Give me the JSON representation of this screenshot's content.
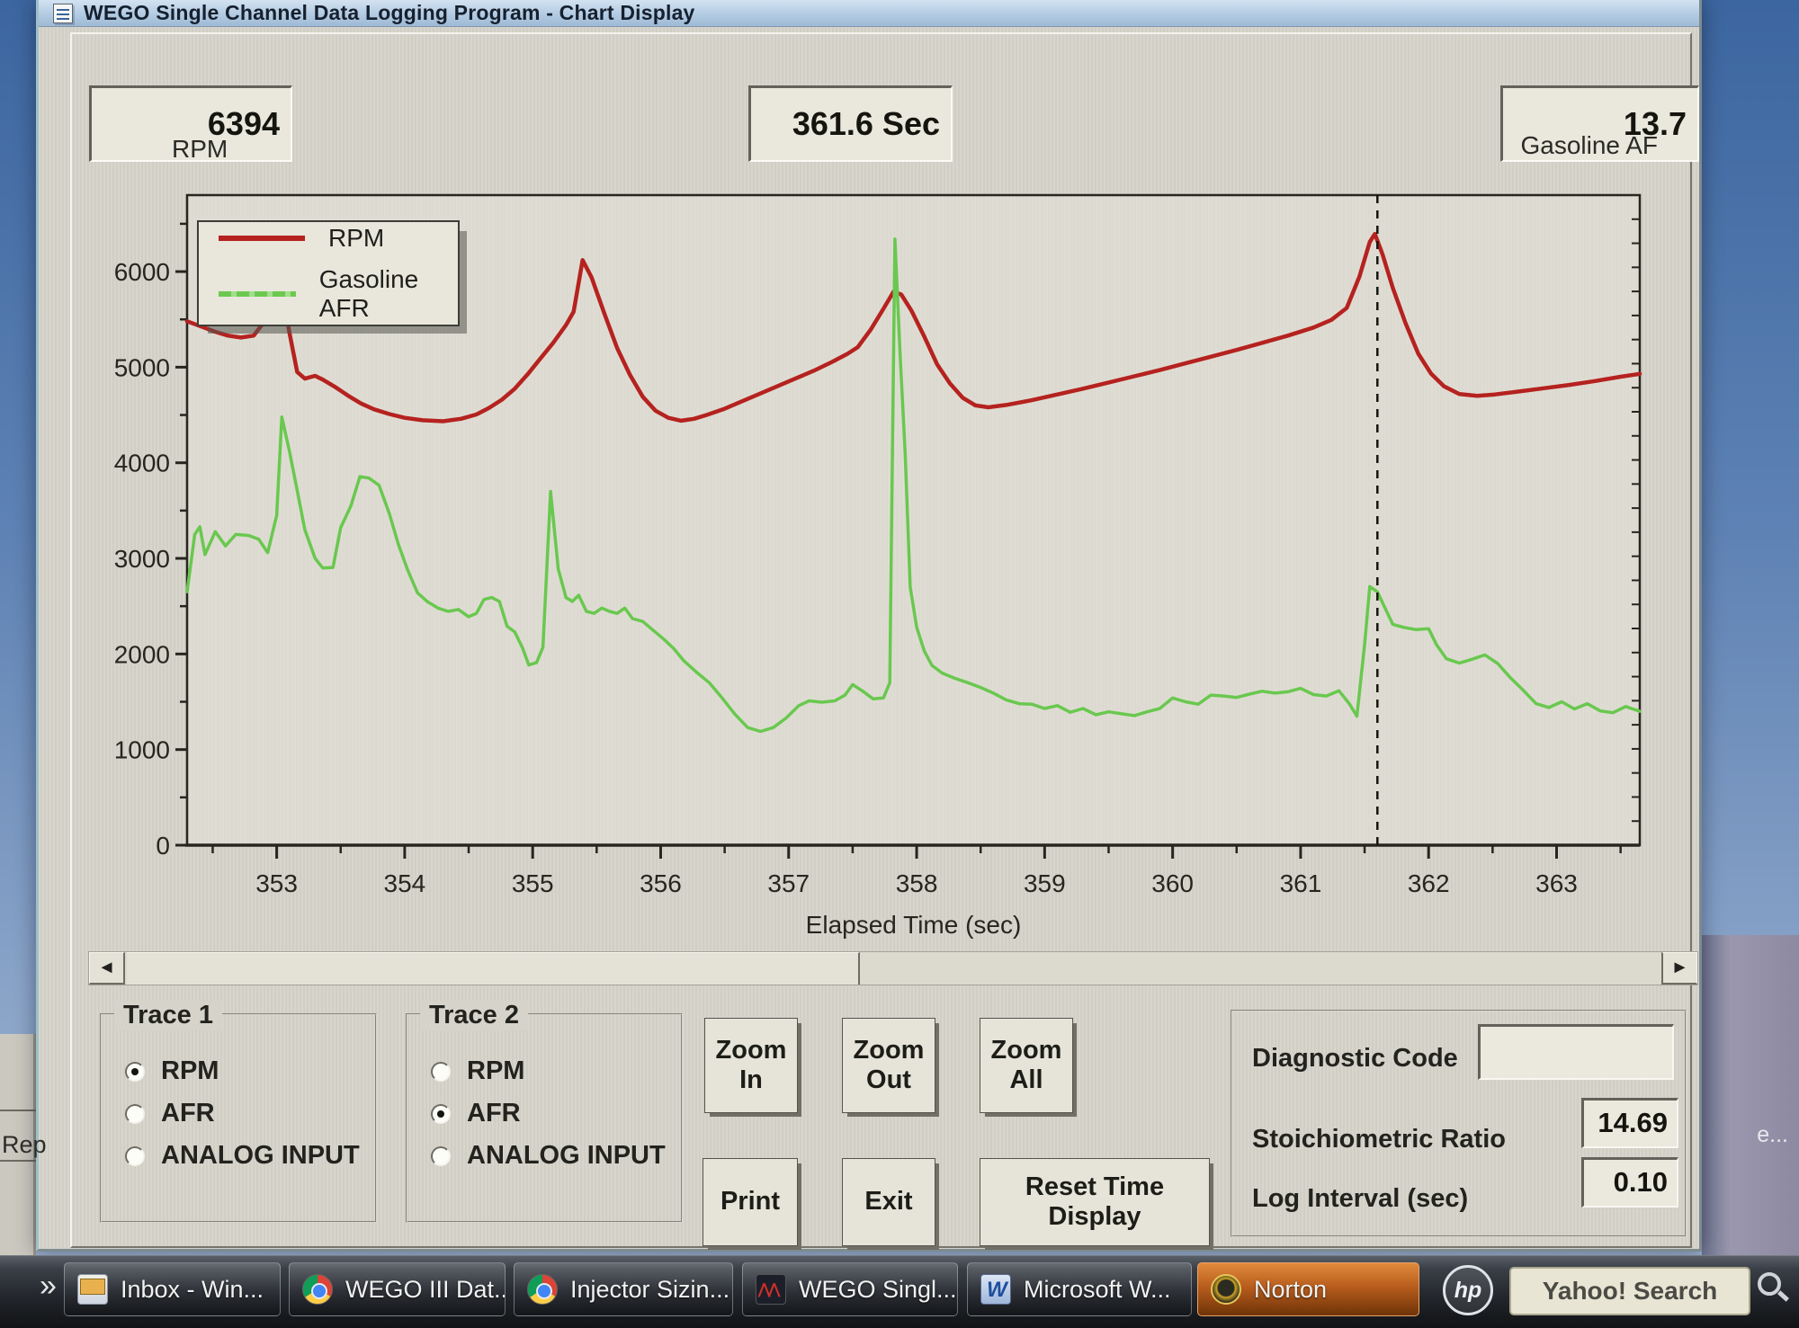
{
  "window": {
    "title": "WEGO Single Channel Data Logging Program - Chart Display"
  },
  "readouts": {
    "rpm_value": "6394",
    "time_value": "361.6 Sec",
    "afr_value": "13.7"
  },
  "background": {
    "rep_label": "Rep",
    "edge_label": "e...",
    "overflow_chevron": "»"
  },
  "scroll": {
    "left_arrow": "◄",
    "right_arrow": "►"
  },
  "trace1": {
    "label": "Trace 1",
    "options": [
      "RPM",
      "AFR",
      "ANALOG INPUT"
    ],
    "selected": "RPM"
  },
  "trace2": {
    "label": "Trace 2",
    "options": [
      "RPM",
      "AFR",
      "ANALOG INPUT"
    ],
    "selected": "AFR"
  },
  "buttons": {
    "zoom_in": "Zoom\nIn",
    "zoom_out": "Zoom\nOut",
    "zoom_all": "Zoom\nAll",
    "print": "Print",
    "exit": "Exit",
    "reset": "Reset Time\nDisplay"
  },
  "diagnostics": {
    "diagnostic_code_label": "Diagnostic Code",
    "diagnostic_code_value": "",
    "stoich_label": "Stoichiometric Ratio",
    "stoich_value": "14.69",
    "log_interval_label": "Log Interval (sec)",
    "log_interval_value": "0.10"
  },
  "taskbar": {
    "items": [
      {
        "icon": "mail",
        "label": "Inbox - Win..."
      },
      {
        "icon": "chrome",
        "label": "WEGO III Dat..."
      },
      {
        "icon": "chrome",
        "label": "Injector Sizin..."
      },
      {
        "icon": "wego",
        "label": "WEGO Singl..."
      },
      {
        "icon": "word",
        "label": "Microsoft W..."
      },
      {
        "icon": "norton",
        "label": "Norton",
        "highlight": true
      }
    ],
    "hp_label": "hp",
    "search_label": "Yahoo! Search"
  },
  "chart_data": {
    "type": "line",
    "title": "",
    "xlabel": "Elapsed Time (sec)",
    "ylabel": "RPM",
    "right_label": "Gasoline AF",
    "legend": [
      "RPM",
      "Gasoline AFR"
    ],
    "legend_position": "top-left",
    "grid": false,
    "xlim": [
      352.3,
      363.65
    ],
    "ylim": [
      0,
      6800
    ],
    "xticks": [
      353,
      354,
      355,
      356,
      357,
      358,
      359,
      360,
      361,
      362,
      363
    ],
    "yticks": [
      0,
      1000,
      2000,
      3000,
      4000,
      5000,
      6000
    ],
    "cursor_time": 361.6,
    "cursor_rpm": 6394,
    "cursor_afr": 13.7,
    "colors": {
      "rpm": "#b5221f",
      "afr": "#69c84f"
    },
    "series": [
      {
        "name": "RPM",
        "color": "#b5221f",
        "points": [
          [
            352.3,
            5480
          ],
          [
            352.42,
            5420
          ],
          [
            352.52,
            5370
          ],
          [
            352.62,
            5330
          ],
          [
            352.72,
            5310
          ],
          [
            352.82,
            5330
          ],
          [
            352.9,
            5470
          ],
          [
            352.96,
            5760
          ],
          [
            353.0,
            6010
          ],
          [
            353.05,
            5740
          ],
          [
            353.1,
            5360
          ],
          [
            353.16,
            4950
          ],
          [
            353.22,
            4880
          ],
          [
            353.3,
            4910
          ],
          [
            353.36,
            4870
          ],
          [
            353.46,
            4790
          ],
          [
            353.56,
            4700
          ],
          [
            353.66,
            4620
          ],
          [
            353.76,
            4560
          ],
          [
            353.88,
            4510
          ],
          [
            354.0,
            4470
          ],
          [
            354.14,
            4445
          ],
          [
            354.3,
            4435
          ],
          [
            354.44,
            4460
          ],
          [
            354.56,
            4505
          ],
          [
            354.66,
            4575
          ],
          [
            354.76,
            4660
          ],
          [
            354.86,
            4775
          ],
          [
            354.96,
            4925
          ],
          [
            355.06,
            5090
          ],
          [
            355.16,
            5255
          ],
          [
            355.26,
            5440
          ],
          [
            355.32,
            5580
          ],
          [
            355.39,
            6120
          ],
          [
            355.46,
            5940
          ],
          [
            355.56,
            5560
          ],
          [
            355.66,
            5200
          ],
          [
            355.76,
            4920
          ],
          [
            355.86,
            4690
          ],
          [
            355.96,
            4545
          ],
          [
            356.06,
            4470
          ],
          [
            356.16,
            4440
          ],
          [
            356.26,
            4460
          ],
          [
            356.36,
            4500
          ],
          [
            356.5,
            4565
          ],
          [
            356.64,
            4645
          ],
          [
            356.78,
            4725
          ],
          [
            356.92,
            4805
          ],
          [
            357.06,
            4885
          ],
          [
            357.2,
            4965
          ],
          [
            357.34,
            5055
          ],
          [
            357.46,
            5140
          ],
          [
            357.54,
            5210
          ],
          [
            357.64,
            5390
          ],
          [
            357.74,
            5610
          ],
          [
            357.82,
            5790
          ],
          [
            357.88,
            5760
          ],
          [
            357.96,
            5590
          ],
          [
            358.06,
            5320
          ],
          [
            358.16,
            5030
          ],
          [
            358.26,
            4830
          ],
          [
            358.36,
            4680
          ],
          [
            358.46,
            4600
          ],
          [
            358.56,
            4580
          ],
          [
            358.7,
            4605
          ],
          [
            358.9,
            4655
          ],
          [
            359.1,
            4715
          ],
          [
            359.3,
            4775
          ],
          [
            359.5,
            4840
          ],
          [
            359.7,
            4905
          ],
          [
            359.9,
            4970
          ],
          [
            360.1,
            5040
          ],
          [
            360.3,
            5110
          ],
          [
            360.5,
            5180
          ],
          [
            360.7,
            5255
          ],
          [
            360.9,
            5330
          ],
          [
            361.1,
            5415
          ],
          [
            361.24,
            5495
          ],
          [
            361.36,
            5620
          ],
          [
            361.46,
            5950
          ],
          [
            361.54,
            6310
          ],
          [
            361.58,
            6394
          ],
          [
            361.64,
            6180
          ],
          [
            361.72,
            5830
          ],
          [
            361.82,
            5460
          ],
          [
            361.92,
            5140
          ],
          [
            362.02,
            4930
          ],
          [
            362.12,
            4800
          ],
          [
            362.24,
            4720
          ],
          [
            362.38,
            4700
          ],
          [
            362.52,
            4715
          ],
          [
            362.7,
            4745
          ],
          [
            362.9,
            4780
          ],
          [
            363.1,
            4815
          ],
          [
            363.3,
            4855
          ],
          [
            363.5,
            4900
          ],
          [
            363.65,
            4930
          ]
        ]
      },
      {
        "name": "Gasoline AFR",
        "color": "#69c84f",
        "points": [
          [
            352.3,
            2650
          ],
          [
            352.36,
            3250
          ],
          [
            352.4,
            3330
          ],
          [
            352.44,
            3040
          ],
          [
            352.52,
            3280
          ],
          [
            352.6,
            3130
          ],
          [
            352.68,
            3250
          ],
          [
            352.78,
            3240
          ],
          [
            352.86,
            3200
          ],
          [
            352.93,
            3060
          ],
          [
            353.0,
            3450
          ],
          [
            353.04,
            4480
          ],
          [
            353.1,
            4120
          ],
          [
            353.16,
            3710
          ],
          [
            353.22,
            3300
          ],
          [
            353.3,
            3000
          ],
          [
            353.36,
            2900
          ],
          [
            353.44,
            2905
          ],
          [
            353.5,
            3320
          ],
          [
            353.58,
            3550
          ],
          [
            353.65,
            3855
          ],
          [
            353.72,
            3840
          ],
          [
            353.8,
            3765
          ],
          [
            353.88,
            3470
          ],
          [
            353.95,
            3150
          ],
          [
            354.02,
            2890
          ],
          [
            354.1,
            2640
          ],
          [
            354.18,
            2545
          ],
          [
            354.26,
            2480
          ],
          [
            354.34,
            2445
          ],
          [
            354.42,
            2465
          ],
          [
            354.5,
            2390
          ],
          [
            354.56,
            2425
          ],
          [
            354.62,
            2570
          ],
          [
            354.68,
            2590
          ],
          [
            354.74,
            2550
          ],
          [
            354.8,
            2290
          ],
          [
            354.86,
            2230
          ],
          [
            354.92,
            2065
          ],
          [
            354.97,
            1885
          ],
          [
            355.03,
            1910
          ],
          [
            355.08,
            2070
          ],
          [
            355.14,
            3700
          ],
          [
            355.2,
            2890
          ],
          [
            355.26,
            2590
          ],
          [
            355.31,
            2550
          ],
          [
            355.36,
            2615
          ],
          [
            355.42,
            2445
          ],
          [
            355.48,
            2425
          ],
          [
            355.54,
            2480
          ],
          [
            355.6,
            2445
          ],
          [
            355.66,
            2425
          ],
          [
            355.72,
            2480
          ],
          [
            355.78,
            2370
          ],
          [
            355.86,
            2340
          ],
          [
            355.94,
            2250
          ],
          [
            356.02,
            2160
          ],
          [
            356.1,
            2060
          ],
          [
            356.18,
            1930
          ],
          [
            356.28,
            1810
          ],
          [
            356.38,
            1700
          ],
          [
            356.48,
            1540
          ],
          [
            356.58,
            1370
          ],
          [
            356.68,
            1230
          ],
          [
            356.78,
            1190
          ],
          [
            356.88,
            1230
          ],
          [
            356.98,
            1330
          ],
          [
            357.08,
            1460
          ],
          [
            357.16,
            1510
          ],
          [
            357.26,
            1495
          ],
          [
            357.36,
            1510
          ],
          [
            357.44,
            1570
          ],
          [
            357.5,
            1680
          ],
          [
            357.58,
            1610
          ],
          [
            357.66,
            1530
          ],
          [
            357.74,
            1540
          ],
          [
            357.79,
            1700
          ],
          [
            357.83,
            6340
          ],
          [
            357.87,
            5150
          ],
          [
            357.91,
            4100
          ],
          [
            357.95,
            2700
          ],
          [
            358.0,
            2280
          ],
          [
            358.06,
            2030
          ],
          [
            358.12,
            1880
          ],
          [
            358.2,
            1800
          ],
          [
            358.3,
            1745
          ],
          [
            358.4,
            1700
          ],
          [
            358.5,
            1650
          ],
          [
            358.6,
            1590
          ],
          [
            358.7,
            1520
          ],
          [
            358.8,
            1480
          ],
          [
            358.9,
            1475
          ],
          [
            359.0,
            1430
          ],
          [
            359.1,
            1460
          ],
          [
            359.2,
            1390
          ],
          [
            359.3,
            1430
          ],
          [
            359.4,
            1365
          ],
          [
            359.5,
            1395
          ],
          [
            359.6,
            1375
          ],
          [
            359.7,
            1355
          ],
          [
            359.8,
            1395
          ],
          [
            359.9,
            1430
          ],
          [
            360.0,
            1540
          ],
          [
            360.1,
            1500
          ],
          [
            360.2,
            1475
          ],
          [
            360.3,
            1570
          ],
          [
            360.4,
            1560
          ],
          [
            360.5,
            1545
          ],
          [
            360.6,
            1580
          ],
          [
            360.7,
            1610
          ],
          [
            360.8,
            1590
          ],
          [
            360.9,
            1605
          ],
          [
            361.0,
            1640
          ],
          [
            361.1,
            1575
          ],
          [
            361.2,
            1560
          ],
          [
            361.3,
            1615
          ],
          [
            361.38,
            1480
          ],
          [
            361.44,
            1350
          ],
          [
            361.5,
            2100
          ],
          [
            361.54,
            2705
          ],
          [
            361.6,
            2650
          ],
          [
            361.66,
            2480
          ],
          [
            361.72,
            2310
          ],
          [
            361.8,
            2280
          ],
          [
            361.9,
            2255
          ],
          [
            362.0,
            2265
          ],
          [
            362.06,
            2100
          ],
          [
            362.14,
            1950
          ],
          [
            362.24,
            1905
          ],
          [
            362.34,
            1945
          ],
          [
            362.44,
            1990
          ],
          [
            362.54,
            1900
          ],
          [
            362.64,
            1750
          ],
          [
            362.74,
            1620
          ],
          [
            362.84,
            1480
          ],
          [
            362.94,
            1440
          ],
          [
            363.04,
            1500
          ],
          [
            363.14,
            1425
          ],
          [
            363.24,
            1480
          ],
          [
            363.34,
            1405
          ],
          [
            363.44,
            1385
          ],
          [
            363.54,
            1450
          ],
          [
            363.65,
            1400
          ]
        ]
      }
    ]
  }
}
